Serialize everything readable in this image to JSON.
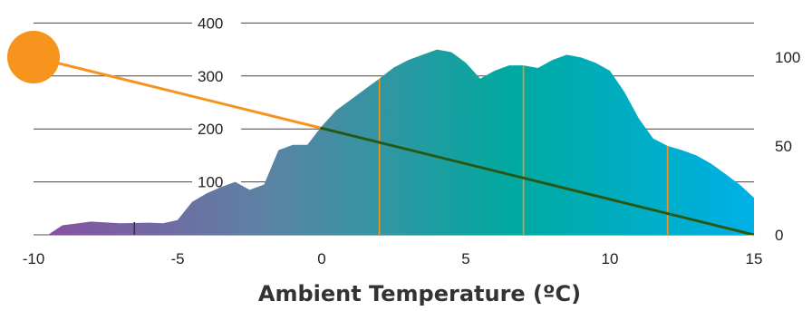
{
  "chart_data": {
    "type": "area",
    "title": "",
    "xlabel": "Ambient Temperature (ºC)",
    "ylabel": "",
    "xlim": [
      -10,
      15
    ],
    "left_axis": {
      "ylim": [
        0,
        400
      ],
      "ticks": [
        100,
        200,
        300,
        400
      ],
      "tick_labels": [
        "100",
        "200",
        "300",
        "400"
      ]
    },
    "right_axis": {
      "ylim": [
        0,
        120
      ],
      "ticks": [
        0,
        50,
        100
      ],
      "tick_labels": [
        "0",
        "50",
        "100"
      ]
    },
    "x_ticks": [
      -10,
      -5,
      0,
      5,
      10,
      15
    ],
    "x_tick_labels": [
      "-10",
      "-5",
      "0",
      "5",
      "10",
      "15"
    ],
    "grid": "horizontal",
    "area_series": {
      "axis": "left",
      "colors": [
        "#8a4ea0",
        "#5a84a4",
        "#00aaa0",
        "#00b0e6"
      ],
      "x": [
        -9.5,
        -9.0,
        -8.0,
        -7.0,
        -6.0,
        -5.5,
        -5.0,
        -4.5,
        -4.0,
        -3.5,
        -3.0,
        -2.5,
        -2.0,
        -1.5,
        -1.0,
        -0.5,
        0.0,
        0.5,
        1.0,
        1.5,
        2.0,
        2.5,
        3.0,
        3.5,
        4.0,
        4.5,
        5.0,
        5.5,
        6.0,
        6.5,
        7.0,
        7.5,
        8.0,
        8.5,
        9.0,
        9.5,
        10.0,
        10.5,
        11.0,
        11.5,
        12.0,
        12.5,
        13.0,
        13.5,
        14.0,
        14.5,
        15.0
      ],
      "y": [
        0,
        18,
        25,
        22,
        23,
        22,
        28,
        62,
        78,
        90,
        100,
        85,
        95,
        160,
        170,
        170,
        205,
        235,
        255,
        275,
        295,
        316,
        330,
        340,
        350,
        345,
        325,
        295,
        310,
        320,
        320,
        315,
        330,
        340,
        335,
        325,
        310,
        270,
        220,
        182,
        168,
        160,
        150,
        135,
        115,
        95,
        70
      ]
    },
    "line_series": {
      "axis": "right",
      "color": "#f7941d",
      "x": [
        -10,
        15
      ],
      "y": [
        100,
        0
      ]
    },
    "marker": {
      "x": -10,
      "y": 100,
      "axis": "right",
      "color": "#f7941d"
    },
    "vertical_lines": {
      "x": [
        2,
        7,
        12
      ],
      "color": "#f7941d"
    },
    "small_tick": {
      "x": -6.5
    }
  }
}
